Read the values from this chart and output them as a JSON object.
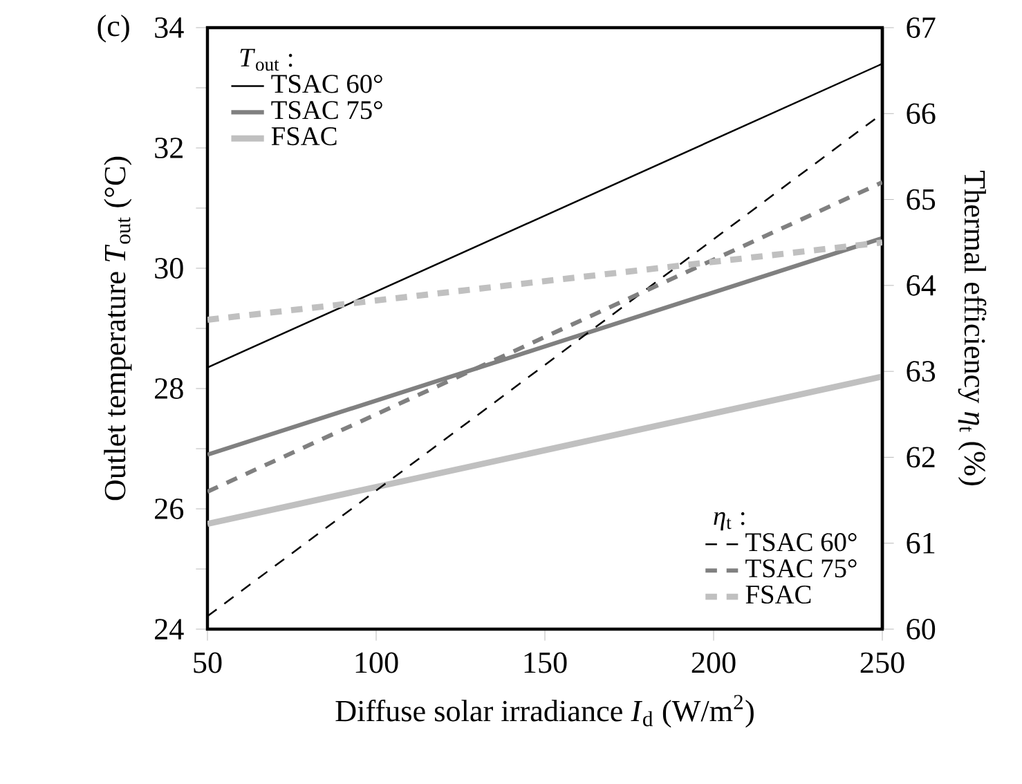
{
  "chart_data": {
    "type": "line",
    "xlabel": "Diffuse solar irradiance *I*$_{d}$ (W/m$^{2}$)",
    "ylabel": "Outlet temperature *T*$_{out}$ (°C)",
    "y2label": "Thermal efficiency *η*$_{t}$ (%)",
    "annotations": [
      "(c)",
      "*T*$_{out}$ :",
      "*η*$_{t}$ :"
    ],
    "x": [
      50,
      250
    ],
    "xlim": [
      50,
      250
    ],
    "xticks": [
      50,
      100,
      150,
      200,
      250
    ],
    "ylim": [
      24,
      34
    ],
    "yticks": [
      24,
      {
        "value": 25,
        "label": null
      },
      26,
      {
        "value": 27,
        "label": null
      },
      28,
      {
        "value": 29,
        "label": null
      },
      30,
      {
        "value": 31,
        "label": null
      },
      32,
      {
        "value": 33,
        "label": null
      },
      34
    ],
    "y2lim": [
      60,
      67
    ],
    "y2ticks": [
      60,
      61,
      62,
      63,
      64,
      65,
      66,
      67
    ],
    "grid": false,
    "legend": "left",
    "marker": "none",
    "series": [
      {
        "name": "TSAC 60°",
        "color": "#000000",
        "line_style": "solid",
        "values": [
          28.35,
          33.4
        ]
      },
      {
        "name": "TSAC 75°",
        "color": "#808080",
        "line_style": "solid",
        "values": [
          26.9,
          30.5
        ]
      },
      {
        "name": "FSAC",
        "color": "#c0c0c0",
        "line_style": "solid",
        "values": [
          25.75,
          28.2
        ]
      },
      {
        "name": "TSAC 60°",
        "color": "#000000",
        "line_style": "dashed",
        "axis": "y2",
        "values": [
          60.15,
          66.0
        ]
      },
      {
        "name": "TSAC 75°",
        "color": "#808080",
        "line_style": "dashed",
        "axis": "y2",
        "values": [
          61.6,
          65.2
        ]
      },
      {
        "name": "FSAC",
        "color": "#c0c0c0",
        "line_style": "dashed",
        "axis": "y2",
        "values": [
          63.6,
          64.5
        ]
      }
    ]
  }
}
